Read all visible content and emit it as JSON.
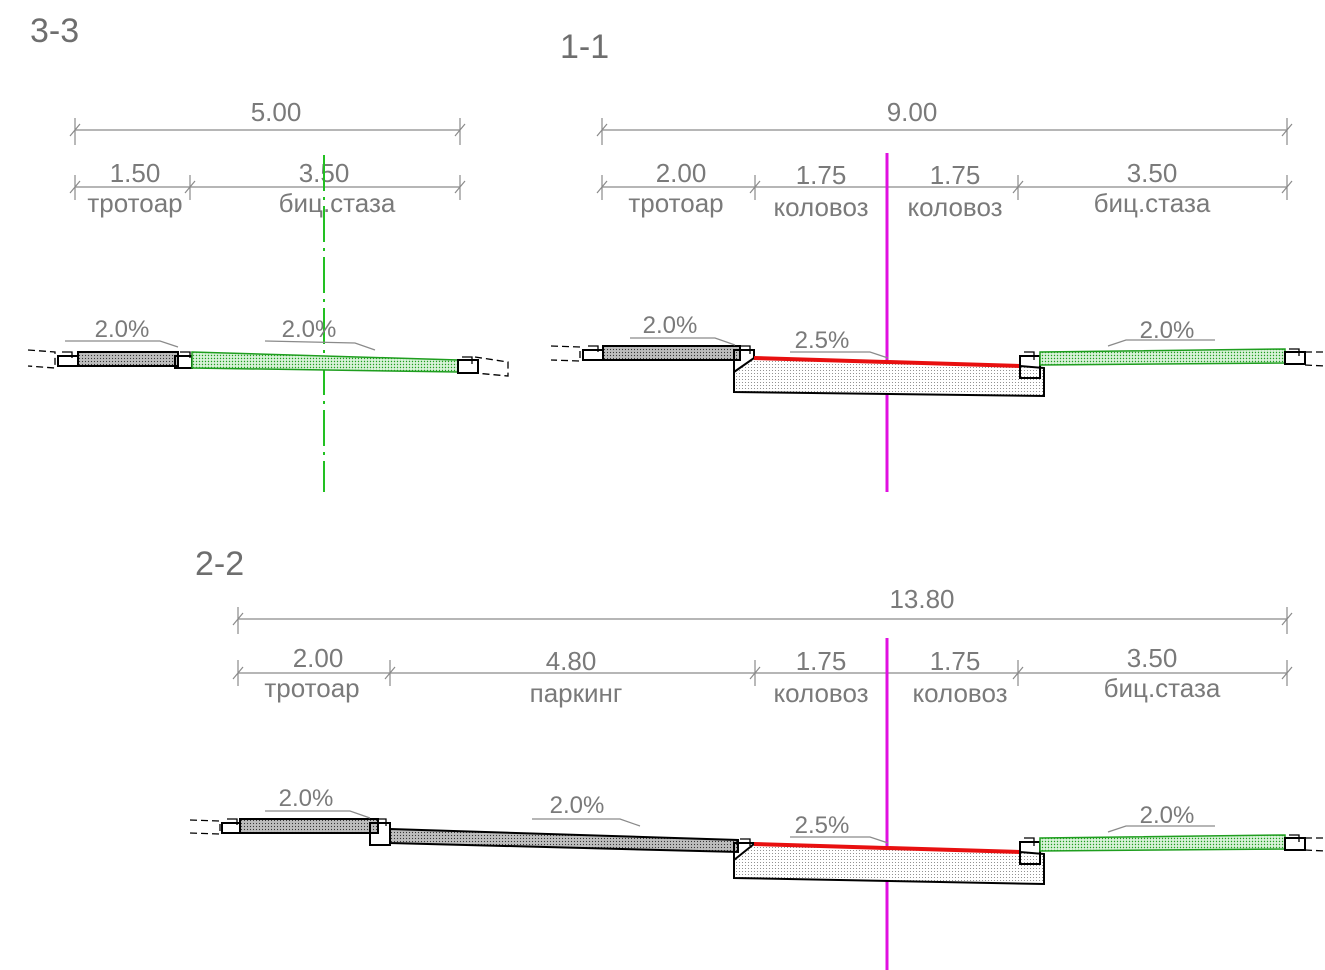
{
  "colors": {
    "axis_road": "#e010e0",
    "axis_bike": "#22c022",
    "carriageway": "#e81010",
    "bike_fill": "#22b822",
    "annotation": "#7a7a7a"
  },
  "sections": {
    "s33": {
      "title": "3-3",
      "total": "5.00",
      "parts": [
        {
          "value": "1.50",
          "label": "тротоар"
        },
        {
          "value": "3.50",
          "label": "биц.стаза"
        }
      ],
      "slopes": [
        "2.0%",
        "2.0%"
      ]
    },
    "s11": {
      "title": "1-1",
      "total": "9.00",
      "parts": [
        {
          "value": "2.00",
          "label": "тротоар"
        },
        {
          "value": "1.75",
          "label": "коловоз"
        },
        {
          "value": "1.75",
          "label": "коловоз"
        },
        {
          "value": "3.50",
          "label": "биц.стаза"
        }
      ],
      "slopes": [
        "2.0%",
        "2.5%",
        "2.0%"
      ]
    },
    "s22": {
      "title": "2-2",
      "total": "13.80",
      "parts": [
        {
          "value": "2.00",
          "label": "тротоар"
        },
        {
          "value": "4.80",
          "label": "паркинг"
        },
        {
          "value": "1.75",
          "label": "коловоз"
        },
        {
          "value": "1.75",
          "label": "коловоз"
        },
        {
          "value": "3.50",
          "label": "биц.стаза"
        }
      ],
      "slopes": [
        "2.0%",
        "2.0%",
        "2.5%",
        "2.0%"
      ]
    }
  }
}
